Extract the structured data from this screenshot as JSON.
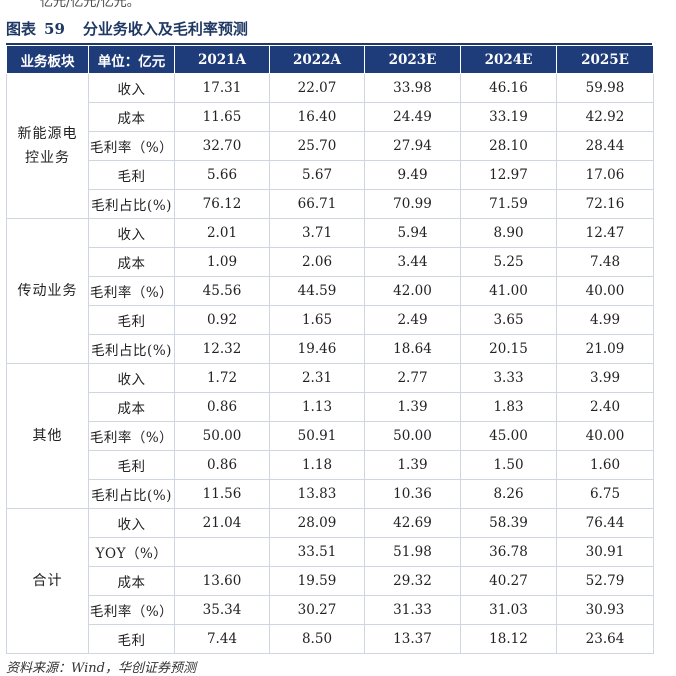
{
  "top_fragment": "亿元/亿元/亿元。",
  "figure": {
    "label": "图表",
    "number": "59",
    "title": "分业务收入及毛利率预测"
  },
  "table": {
    "headers": [
      "业务板块",
      "单位：亿元",
      "2021A",
      "2022A",
      "2023E",
      "2024E",
      "2025E"
    ],
    "groups": [
      {
        "name": "新能源电控业务",
        "rows": [
          {
            "item": "收入",
            "values": [
              "17.31",
              "22.07",
              "33.98",
              "46.16",
              "59.98"
            ]
          },
          {
            "item": "成本",
            "values": [
              "11.65",
              "16.40",
              "24.49",
              "33.19",
              "42.92"
            ]
          },
          {
            "item": "毛利率（%）",
            "values": [
              "32.70",
              "25.70",
              "27.94",
              "28.10",
              "28.44"
            ]
          },
          {
            "item": "毛利",
            "values": [
              "5.66",
              "5.67",
              "9.49",
              "12.97",
              "17.06"
            ]
          },
          {
            "item": "毛利占比(%)",
            "values": [
              "76.12",
              "66.71",
              "70.99",
              "71.59",
              "72.16"
            ]
          }
        ]
      },
      {
        "name": "传动业务",
        "rows": [
          {
            "item": "收入",
            "values": [
              "2.01",
              "3.71",
              "5.94",
              "8.90",
              "12.47"
            ]
          },
          {
            "item": "成本",
            "values": [
              "1.09",
              "2.06",
              "3.44",
              "5.25",
              "7.48"
            ]
          },
          {
            "item": "毛利率（%）",
            "values": [
              "45.56",
              "44.59",
              "42.00",
              "41.00",
              "40.00"
            ]
          },
          {
            "item": "毛利",
            "values": [
              "0.92",
              "1.65",
              "2.49",
              "3.65",
              "4.99"
            ]
          },
          {
            "item": "毛利占比(%)",
            "values": [
              "12.32",
              "19.46",
              "18.64",
              "20.15",
              "21.09"
            ]
          }
        ]
      },
      {
        "name": "其他",
        "rows": [
          {
            "item": "收入",
            "values": [
              "1.72",
              "2.31",
              "2.77",
              "3.33",
              "3.99"
            ]
          },
          {
            "item": "成本",
            "values": [
              "0.86",
              "1.13",
              "1.39",
              "1.83",
              "2.40"
            ]
          },
          {
            "item": "毛利率（%）",
            "values": [
              "50.00",
              "50.91",
              "50.00",
              "45.00",
              "40.00"
            ]
          },
          {
            "item": "毛利",
            "values": [
              "0.86",
              "1.18",
              "1.39",
              "1.50",
              "1.60"
            ]
          },
          {
            "item": "毛利占比(%)",
            "values": [
              "11.56",
              "13.83",
              "10.36",
              "8.26",
              "6.75"
            ]
          }
        ]
      },
      {
        "name": "合计",
        "rows": [
          {
            "item": "收入",
            "values": [
              "21.04",
              "28.09",
              "42.69",
              "58.39",
              "76.44"
            ]
          },
          {
            "item": "YOY（%）",
            "values": [
              "",
              "33.51",
              "51.98",
              "36.78",
              "30.91"
            ]
          },
          {
            "item": "成本",
            "values": [
              "13.60",
              "19.59",
              "29.32",
              "40.27",
              "52.79"
            ]
          },
          {
            "item": "毛利率（%）",
            "values": [
              "35.34",
              "30.27",
              "31.33",
              "31.03",
              "30.93"
            ]
          },
          {
            "item": "毛利",
            "values": [
              "7.44",
              "8.50",
              "13.37",
              "18.12",
              "23.64"
            ]
          }
        ]
      }
    ]
  },
  "source": "资料来源：Wind，华创证券预测"
}
